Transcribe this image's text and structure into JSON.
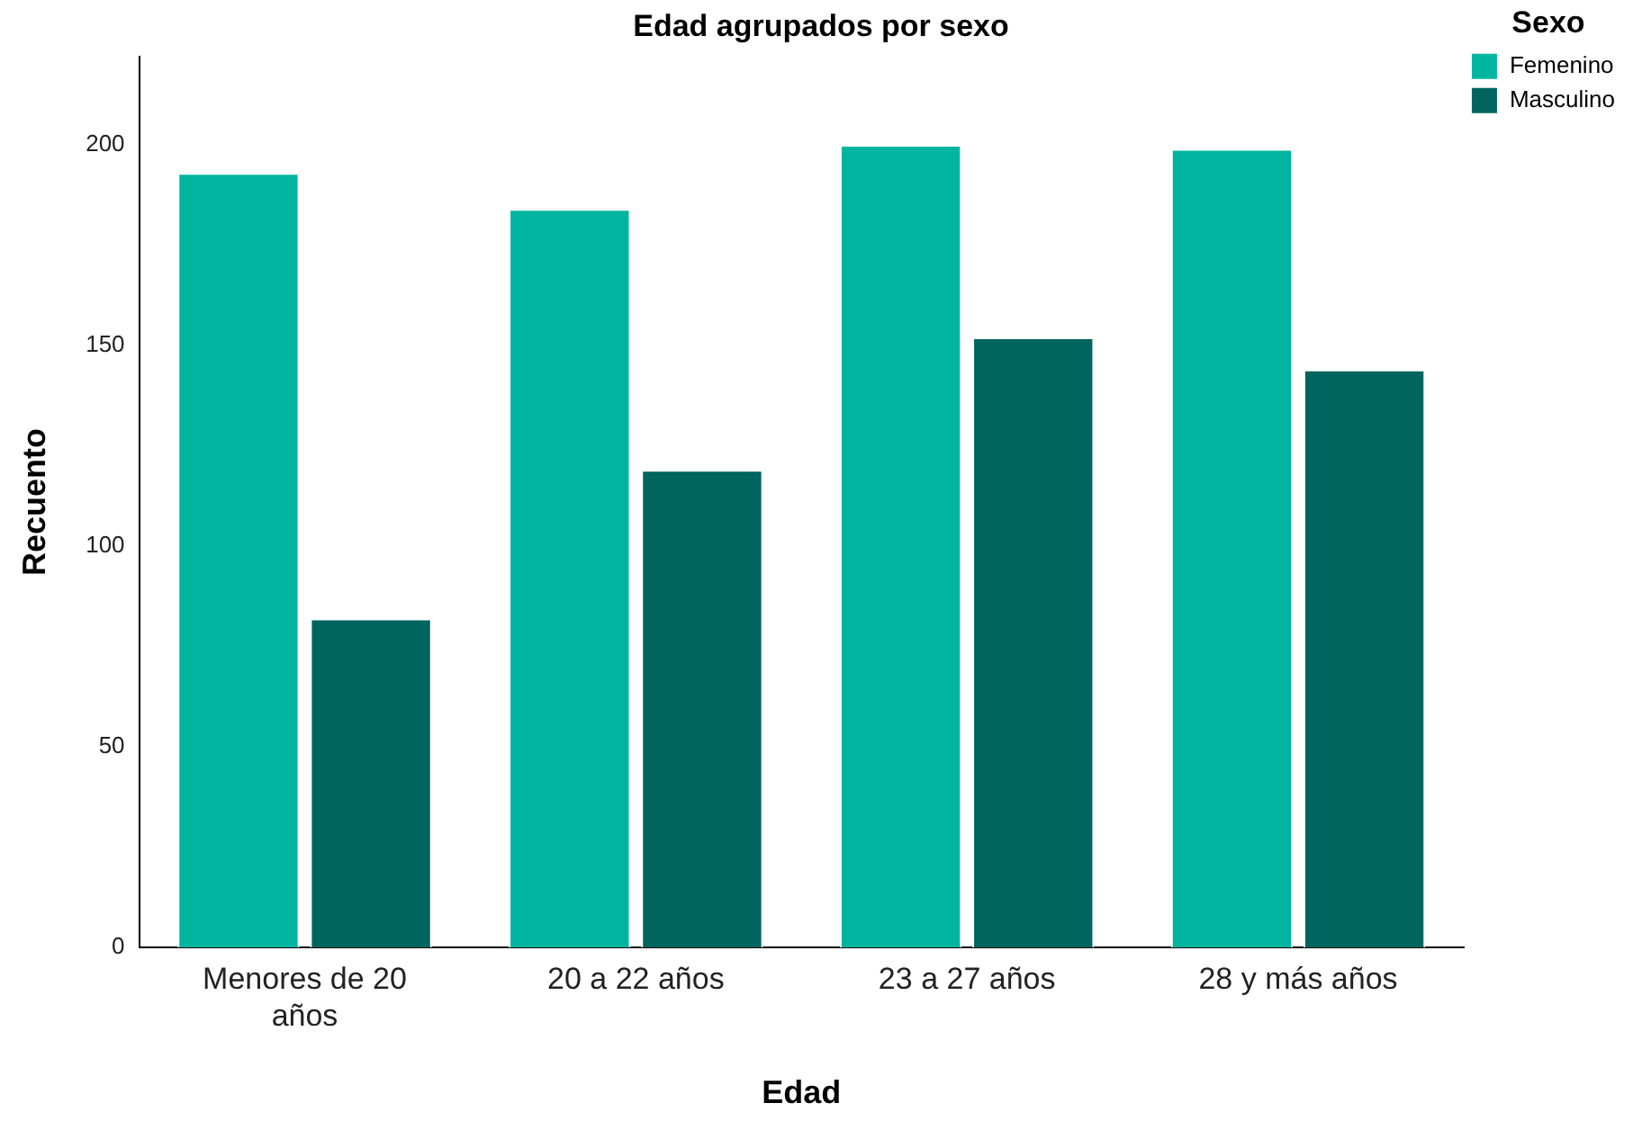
{
  "chart_data": {
    "type": "bar",
    "title": "Edad agrupados por sexo",
    "xlabel": "Edad",
    "ylabel": "Recuento",
    "legend_title": "Sexo",
    "categories": [
      "Menores de 20 años",
      "20 a 22 años",
      "23 a 27 años",
      "28 y más años"
    ],
    "series": [
      {
        "name": "Femenino",
        "color": "#00b5a0",
        "values": [
          193,
          184,
          200,
          199
        ]
      },
      {
        "name": "Masculino",
        "color": "#00645f",
        "values": [
          82,
          119,
          152,
          144
        ]
      }
    ],
    "ylim": [
      0,
      222
    ],
    "yticks": [
      0,
      50,
      100,
      150,
      200
    ],
    "grid": false,
    "legend": "top right"
  }
}
